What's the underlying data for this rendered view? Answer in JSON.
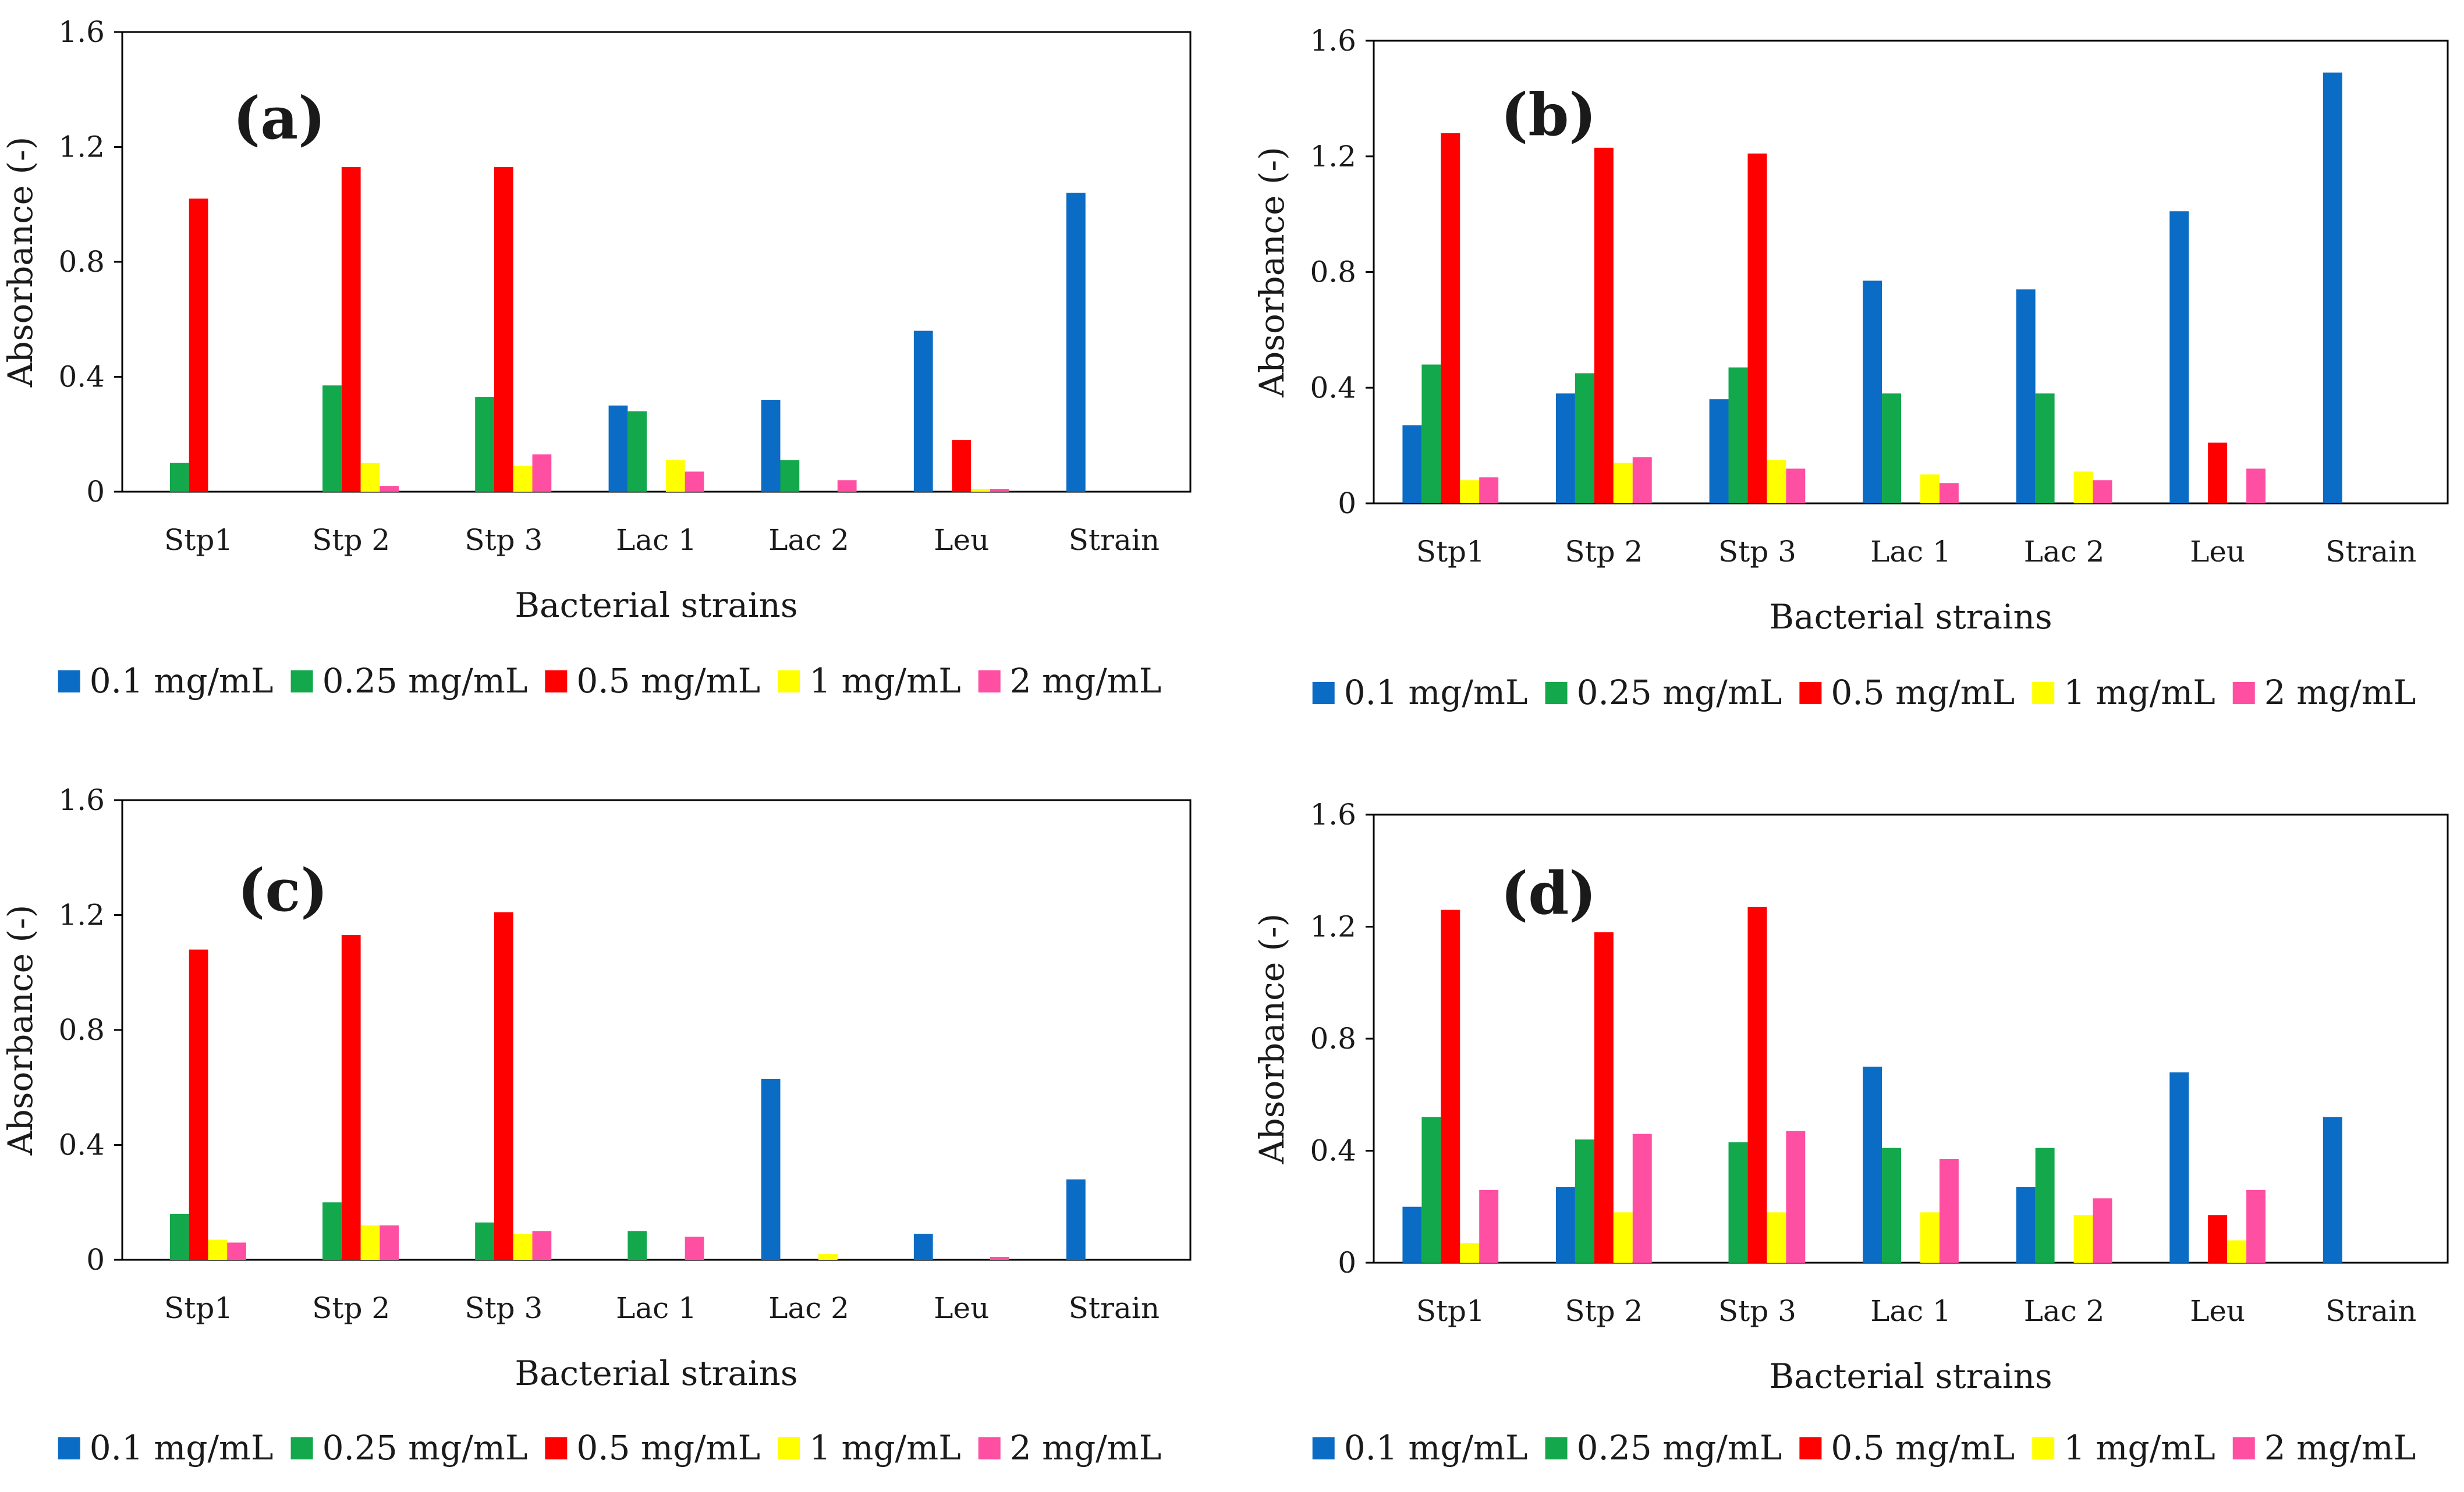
{
  "colors": {
    "0.1 mg/mL": "#0a6cc4",
    "0.25 mg/mL": "#13a84c",
    "0.5 mg/mL": "#ff0000",
    "1 mg/mL": "#ffff00",
    "2 mg/mL": "#ff4fa3"
  },
  "chart_data": [
    {
      "type": "bar",
      "panel_label": "(a)",
      "xlabel": "Bacterial strains",
      "ylabel": "Absorbance (-)",
      "ylim": [
        0,
        1.6
      ],
      "yticks": [
        "0",
        "0.4",
        "0.8",
        "1.2",
        "1.6"
      ],
      "categories": [
        "Stp1",
        "Stp 2",
        "Stp 3",
        "Lac 1",
        "Lac 2",
        "Leu",
        "Strain"
      ],
      "series": [
        {
          "name": "0.1 mg/mL",
          "values": [
            0,
            0,
            0,
            0.3,
            0.32,
            0.56,
            1.04
          ]
        },
        {
          "name": "0.25 mg/mL",
          "values": [
            0.1,
            0.37,
            0.33,
            0.28,
            0.11,
            0,
            0
          ]
        },
        {
          "name": "0.5 mg/mL",
          "values": [
            1.02,
            1.13,
            1.13,
            0,
            0,
            0.18,
            0
          ]
        },
        {
          "name": "1 mg/mL",
          "values": [
            0,
            0.1,
            0.09,
            0.11,
            0,
            0.01,
            0
          ]
        },
        {
          "name": "2 mg/mL",
          "values": [
            0,
            0.02,
            0.13,
            0.07,
            0.04,
            0.01,
            0
          ]
        }
      ],
      "legend": "bottom",
      "grid": false
    },
    {
      "type": "bar",
      "panel_label": "(b)",
      "xlabel": "Bacterial strains",
      "ylabel": "Absorbance (-)",
      "ylim": [
        0,
        1.6
      ],
      "yticks": [
        "0",
        "0.4",
        "0.8",
        "1.2",
        "1.6"
      ],
      "categories": [
        "Stp1",
        "Stp 2",
        "Stp 3",
        "Lac 1",
        "Lac 2",
        "Leu",
        "Strain"
      ],
      "series": [
        {
          "name": "0.1 mg/mL",
          "values": [
            0.27,
            0.38,
            0.36,
            0.77,
            0.74,
            1.01,
            1.49
          ]
        },
        {
          "name": "0.25 mg/mL",
          "values": [
            0.48,
            0.45,
            0.47,
            0.38,
            0.38,
            0,
            0
          ]
        },
        {
          "name": "0.5 mg/mL",
          "values": [
            1.28,
            1.23,
            1.21,
            0,
            0,
            0.21,
            0
          ]
        },
        {
          "name": "1 mg/mL",
          "values": [
            0.08,
            0.14,
            0.15,
            0.1,
            0.11,
            0,
            0
          ]
        },
        {
          "name": "2 mg/mL",
          "values": [
            0.09,
            0.16,
            0.12,
            0.07,
            0.08,
            0.12,
            0
          ]
        }
      ],
      "legend": "bottom",
      "grid": false
    },
    {
      "type": "bar",
      "panel_label": "(c)",
      "xlabel": "Bacterial strains",
      "ylabel": "Absorbance (-)",
      "ylim": [
        0,
        1.6
      ],
      "yticks": [
        "0",
        "0.4",
        "0.8",
        "1.2",
        "1.6"
      ],
      "categories": [
        "Stp1",
        "Stp 2",
        "Stp 3",
        "Lac 1",
        "Lac 2",
        "Leu",
        "Strain"
      ],
      "series": [
        {
          "name": "0.1 mg/mL",
          "values": [
            0,
            0,
            0,
            0,
            0.63,
            0.09,
            0.28
          ]
        },
        {
          "name": "0.25 mg/mL",
          "values": [
            0.16,
            0.2,
            0.13,
            0.1,
            0,
            0,
            0
          ]
        },
        {
          "name": "0.5 mg/mL",
          "values": [
            1.08,
            1.13,
            1.21,
            0,
            0,
            0,
            0
          ]
        },
        {
          "name": "1 mg/mL",
          "values": [
            0.07,
            0.12,
            0.09,
            0,
            0.02,
            0,
            0
          ]
        },
        {
          "name": "2 mg/mL",
          "values": [
            0.06,
            0.12,
            0.1,
            0.08,
            0,
            0.01,
            0
          ]
        }
      ],
      "legend": "bottom",
      "grid": false
    },
    {
      "type": "bar",
      "panel_label": "(d)",
      "xlabel": "Bacterial strains",
      "ylabel": "Absorbance (-)",
      "ylim": [
        0,
        1.6
      ],
      "yticks": [
        "0",
        "0.4",
        "0.8",
        "1.2",
        "1.6"
      ],
      "categories": [
        "Stp1",
        "Stp 2",
        "Stp 3",
        "Lac 1",
        "Lac 2",
        "Leu",
        "Strain"
      ],
      "series": [
        {
          "name": "0.1 mg/mL",
          "values": [
            0.2,
            0.27,
            0,
            0.7,
            0.27,
            0.68,
            0.52
          ]
        },
        {
          "name": "0.25 mg/mL",
          "values": [
            0.52,
            0.44,
            0.43,
            0.41,
            0.41,
            0,
            0
          ]
        },
        {
          "name": "0.5 mg/mL",
          "values": [
            1.26,
            1.18,
            1.27,
            0,
            0,
            0.17,
            0
          ]
        },
        {
          "name": "1 mg/mL",
          "values": [
            0.07,
            0.18,
            0.18,
            0.18,
            0.17,
            0.08,
            0
          ]
        },
        {
          "name": "2 mg/mL",
          "values": [
            0.26,
            0.46,
            0.47,
            0.37,
            0.23,
            0.26,
            0
          ]
        }
      ],
      "legend": "bottom",
      "grid": false
    }
  ]
}
